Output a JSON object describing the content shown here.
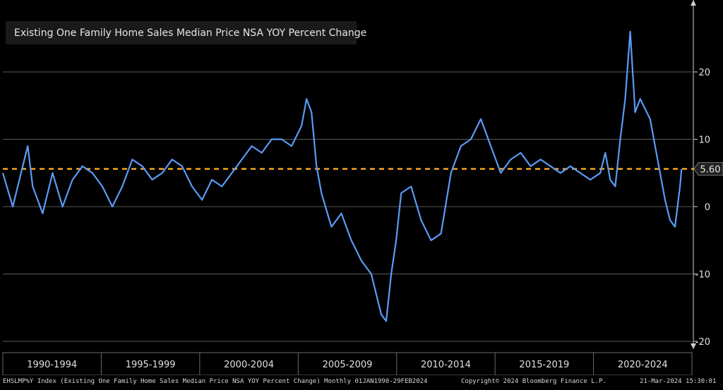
{
  "chart_data": {
    "type": "line",
    "series": [
      {
        "name": "Existing One Family Home Sales Median Price NSA YOY Percent Change",
        "color": "#5a9bf6",
        "x": [
          1990.0,
          1990.5,
          1991.0,
          1991.25,
          1991.5,
          1992.0,
          1992.5,
          1993.0,
          1993.5,
          1994.0,
          1994.5,
          1995.0,
          1995.5,
          1996.0,
          1996.5,
          1997.0,
          1997.5,
          1998.0,
          1998.5,
          1999.0,
          1999.5,
          2000.0,
          2000.5,
          2001.0,
          2001.5,
          2002.0,
          2002.5,
          2003.0,
          2003.5,
          2004.0,
          2004.5,
          2005.0,
          2005.25,
          2005.5,
          2005.75,
          2006.0,
          2006.5,
          2007.0,
          2007.5,
          2008.0,
          2008.5,
          2009.0,
          2009.25,
          2009.5,
          2009.75,
          2010.0,
          2010.5,
          2011.0,
          2011.5,
          2012.0,
          2012.5,
          2013.0,
          2013.5,
          2014.0,
          2014.5,
          2015.0,
          2015.5,
          2016.0,
          2016.5,
          2017.0,
          2017.5,
          2018.0,
          2018.5,
          2019.0,
          2019.5,
          2020.0,
          2020.25,
          2020.5,
          2020.75,
          2021.0,
          2021.25,
          2021.5,
          2021.75,
          2022.0,
          2022.5,
          2022.75,
          2023.0,
          2023.25,
          2023.5,
          2023.75,
          2024.0,
          2024.08
        ],
        "values": [
          5,
          0,
          6,
          9,
          3,
          -1,
          5,
          0,
          4,
          6,
          5,
          3,
          0,
          3,
          7,
          6,
          4,
          5,
          7,
          6,
          3,
          1,
          4,
          3,
          5,
          7,
          9,
          8,
          10,
          10,
          9,
          12,
          16,
          14,
          6,
          2,
          -3,
          -1,
          -5,
          -8,
          -10,
          -16,
          -17,
          -10,
          -5,
          2,
          3,
          -2,
          -5,
          -4,
          5,
          9,
          10,
          13,
          9,
          5,
          7,
          8,
          6,
          7,
          6,
          5,
          6,
          5,
          4,
          5,
          8,
          4,
          3,
          10,
          16,
          26,
          14,
          16,
          13,
          9,
          5,
          1,
          -2,
          -3,
          3,
          5.6
        ]
      }
    ],
    "reference_lines": [
      {
        "value": 5.6,
        "label": "5.60",
        "color": "#f5a623",
        "style": "dashed"
      }
    ],
    "xlim": [
      1990.0,
      2024.6
    ],
    "ylim": [
      -22,
      30
    ],
    "yticks": [
      -20,
      -10,
      0,
      10,
      20
    ],
    "categories": [
      "1990-1994",
      "1995-1999",
      "2000-2004",
      "2005-2009",
      "2010-2014",
      "2015-2019",
      "2020-2024"
    ],
    "axis_side": "right",
    "grid": true,
    "legend": "top-left"
  },
  "legend": {
    "label": "Existing One Family Home Sales Median Price NSA YOY Percent Change"
  },
  "footer": {
    "left": "EHSLMP%Y Index (Existing One Family Home Sales Median Price NSA YOY Percent Change)  Monthly 01JAN1990-29FEB2024",
    "middle": "Copyright© 2024 Bloomberg Finance L.P.",
    "right": "21-Mar-2024 15:30:01"
  }
}
